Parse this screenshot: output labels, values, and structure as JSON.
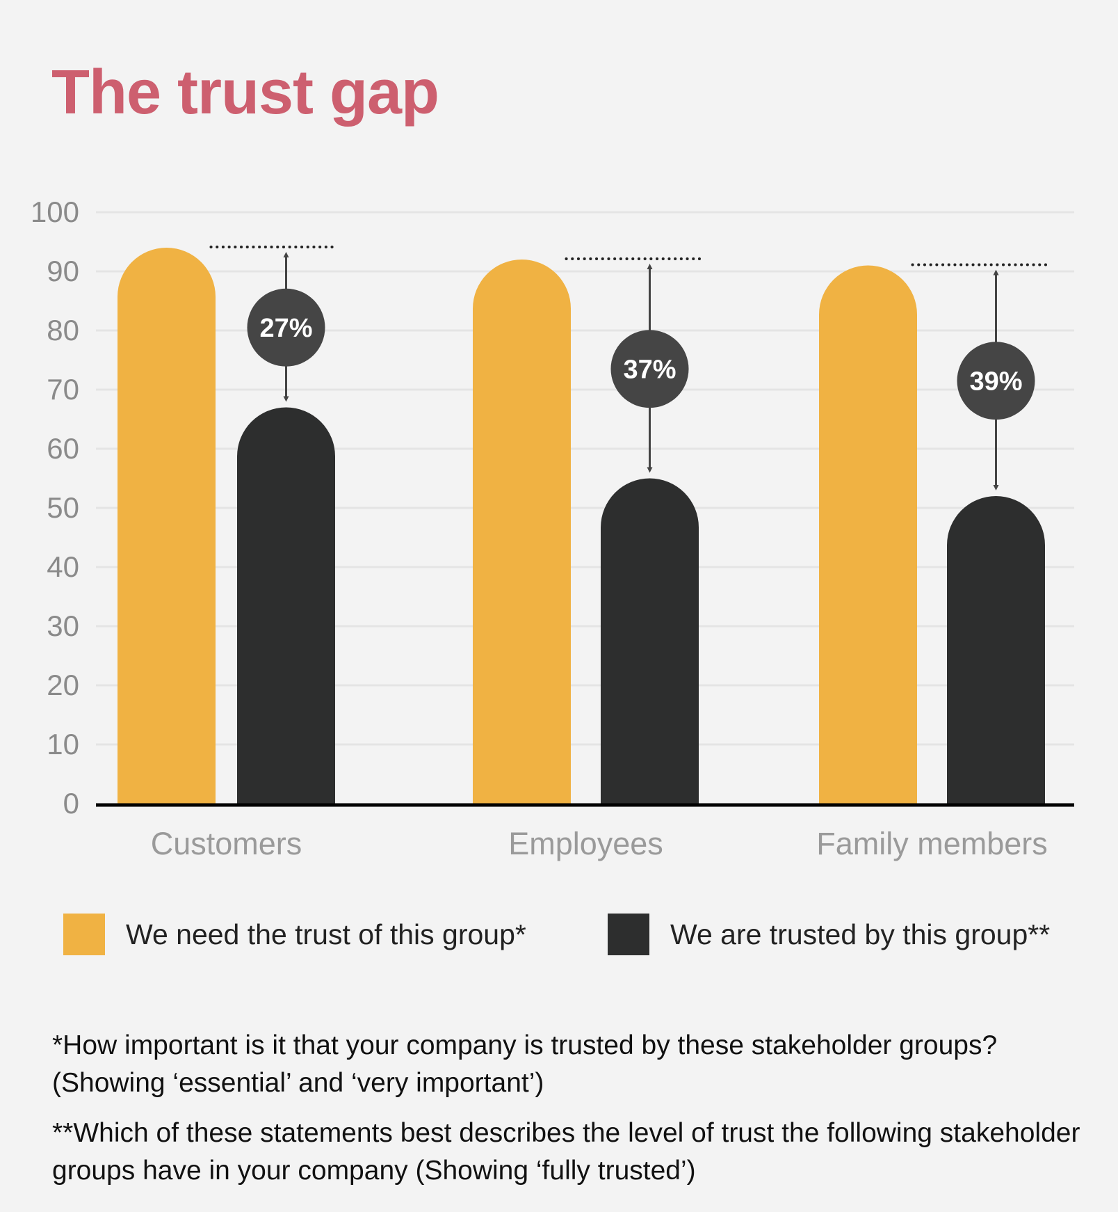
{
  "chart_data": {
    "type": "bar",
    "title": "The trust gap",
    "categories": [
      "Customers",
      "Employees",
      "Family members"
    ],
    "series": [
      {
        "name": "We need the trust of this group*",
        "color": "#f0b243",
        "values": [
          94,
          92,
          91
        ]
      },
      {
        "name": "We are trusted by this group**",
        "color": "#2d2e2e",
        "values": [
          67,
          55,
          52
        ]
      }
    ],
    "gap_labels": [
      "27%",
      "37%",
      "39%"
    ],
    "ylim": [
      0,
      100
    ],
    "yticks": [
      0,
      10,
      20,
      30,
      40,
      50,
      60,
      70,
      80,
      90,
      100
    ],
    "grid": true,
    "legend": "bottom",
    "xlabel": "",
    "ylabel": ""
  },
  "footnotes": [
    "*How important is it that your company is trusted by these stakeholder groups? (Showing ‘essential’ and ‘very important’)",
    "**Which of these statements best describes the level of trust the following stakeholder groups have in your company (Showing ‘fully trusted’)"
  ]
}
